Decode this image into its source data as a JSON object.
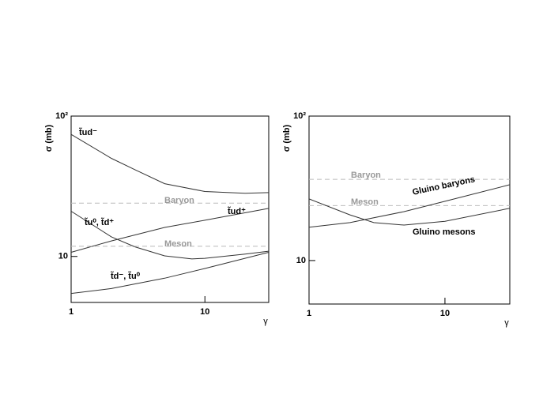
{
  "chart_data": [
    {
      "type": "line",
      "xlabel": "γ",
      "ylabel": "σ (mb)",
      "xscale": "log",
      "yscale": "log",
      "xlim": [
        1,
        30
      ],
      "ylim": [
        4.7,
        100
      ],
      "xticks": [
        1,
        10
      ],
      "yticks": [
        10,
        {
          "value": 100,
          "label": "10²"
        }
      ],
      "series": [
        {
          "name": "t̃ud⁻",
          "color": "#333333",
          "dashed": false,
          "x": [
            1,
            2,
            3,
            5,
            10,
            20,
            30
          ],
          "values": [
            74,
            50,
            41.5,
            33,
            29,
            28.2,
            28.5
          ]
        },
        {
          "name": "Baryon",
          "color": "#bbbbbb",
          "dashed": true,
          "x": [
            1,
            30
          ],
          "values": [
            24,
            24
          ]
        },
        {
          "name": "t̃ud⁺",
          "color": "#333333",
          "dashed": false,
          "x": [
            1,
            2,
            5,
            10,
            30
          ],
          "values": [
            10.7,
            12.9,
            16.1,
            18.1,
            22
          ]
        },
        {
          "name": "t̃u⁰, t̃d⁺",
          "color": "#333333",
          "dashed": false,
          "x": [
            1,
            2,
            3,
            5,
            8,
            10,
            20,
            30
          ],
          "values": [
            21,
            13.8,
            11.7,
            10.1,
            9.6,
            9.7,
            10.4,
            10.9
          ]
        },
        {
          "name": "Meson",
          "color": "#bbbbbb",
          "dashed": true,
          "x": [
            1,
            30
          ],
          "values": [
            11.8,
            11.8
          ]
        },
        {
          "name": "t̃d⁻, t̃u⁰",
          "color": "#333333",
          "dashed": false,
          "x": [
            1,
            2,
            5,
            10,
            30
          ],
          "values": [
            5.45,
            5.9,
            7.0,
            8.2,
            10.7
          ]
        }
      ]
    },
    {
      "type": "line",
      "xlabel": "γ",
      "ylabel": "σ (mb)",
      "xscale": "log",
      "yscale": "log",
      "xlim": [
        1,
        30
      ],
      "ylim": [
        5,
        100
      ],
      "xticks": [
        1,
        10
      ],
      "yticks": [
        10,
        {
          "value": 100,
          "label": "10²"
        }
      ],
      "series": [
        {
          "name": "Baryon",
          "color": "#bbbbbb",
          "dashed": true,
          "x": [
            1,
            30
          ],
          "values": [
            36.5,
            36.5
          ]
        },
        {
          "name": "Meson",
          "color": "#bbbbbb",
          "dashed": true,
          "x": [
            1,
            30
          ],
          "values": [
            24,
            24
          ]
        },
        {
          "name": "Gluino baryons",
          "color": "#333333",
          "dashed": false,
          "x": [
            1,
            2,
            5,
            10,
            30
          ],
          "values": [
            17,
            18.3,
            21.8,
            25.7,
            33.5
          ]
        },
        {
          "name": "Gluino mesons",
          "color": "#333333",
          "dashed": false,
          "x": [
            1,
            2,
            3,
            5,
            10,
            30
          ],
          "values": [
            26.7,
            20.7,
            18.3,
            17.6,
            18.7,
            23
          ]
        }
      ]
    }
  ]
}
